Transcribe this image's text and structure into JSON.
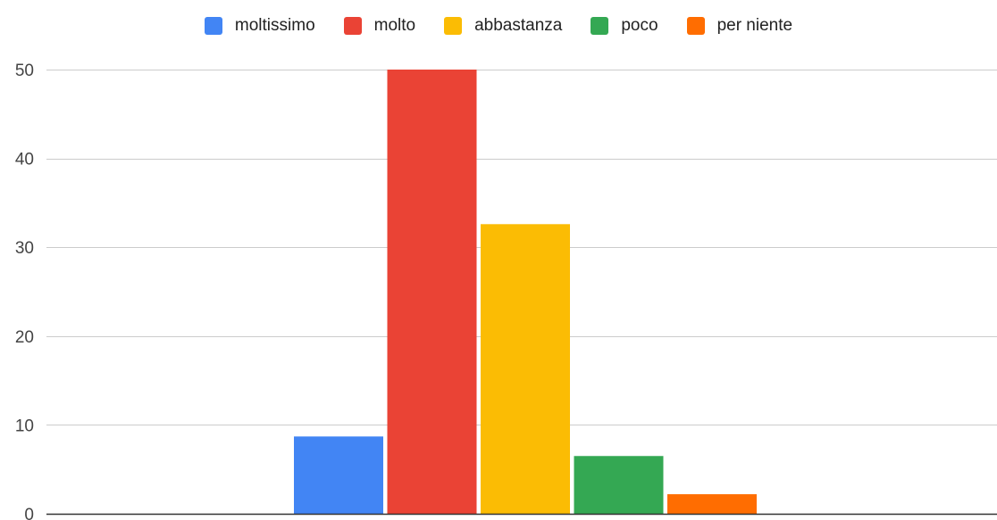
{
  "chart_data": {
    "type": "bar",
    "categories": [
      ""
    ],
    "series": [
      {
        "name": "moltissimo",
        "values": [
          8.7
        ],
        "color": "#4285F4"
      },
      {
        "name": "molto",
        "values": [
          50
        ],
        "color": "#EA4335"
      },
      {
        "name": "abbastanza",
        "values": [
          32.6
        ],
        "color": "#FBBC04"
      },
      {
        "name": "poco",
        "values": [
          6.5
        ],
        "color": "#34A853"
      },
      {
        "name": "per niente",
        "values": [
          2.2
        ],
        "color": "#FF6D01"
      }
    ],
    "ylim": [
      0,
      50
    ],
    "yticks": [
      "0",
      "10",
      "20",
      "30",
      "40",
      "50"
    ],
    "grid": true,
    "legend_position": "top"
  }
}
